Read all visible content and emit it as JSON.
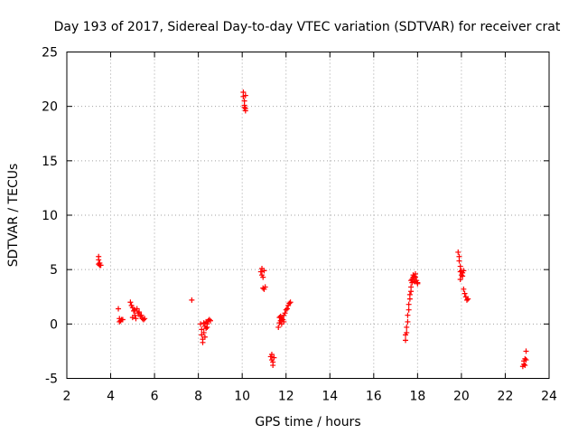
{
  "chart_data": {
    "type": "scatter",
    "title": "Day 193 of 2017, Sidereal Day-to-day VTEC variation (SDTVAR) for receiver crat",
    "xlabel": "GPS time / hours",
    "ylabel": "SDTVAR / TECUs",
    "xlim": [
      2,
      24
    ],
    "ylim": [
      -5,
      25
    ],
    "xticks": [
      "2",
      "4",
      "6",
      "8",
      "10",
      "12",
      "14",
      "16",
      "18",
      "20",
      "22",
      "24"
    ],
    "yticks": [
      "-5",
      "0",
      "5",
      "10",
      "15",
      "20",
      "25"
    ],
    "grid": true,
    "marker": "+",
    "color": "#ff0000",
    "series": [
      {
        "name": "SDTVAR",
        "points": [
          [
            3.45,
            6.2
          ],
          [
            3.45,
            5.9
          ],
          [
            3.45,
            5.5
          ],
          [
            3.5,
            5.4
          ],
          [
            3.55,
            5.4
          ],
          [
            3.5,
            5.6
          ],
          [
            4.35,
            1.4
          ],
          [
            4.4,
            0.5
          ],
          [
            4.45,
            0.3
          ],
          [
            4.5,
            0.4
          ],
          [
            4.55,
            0.4
          ],
          [
            4.4,
            0.2
          ],
          [
            4.9,
            2.0
          ],
          [
            4.95,
            1.7
          ],
          [
            5.0,
            1.5
          ],
          [
            5.05,
            1.2
          ],
          [
            5.1,
            0.8
          ],
          [
            5.15,
            0.5
          ],
          [
            5.0,
            0.6
          ],
          [
            5.2,
            1.4
          ],
          [
            5.25,
            1.0
          ],
          [
            5.3,
            1.1
          ],
          [
            5.35,
            0.7
          ],
          [
            5.4,
            0.8
          ],
          [
            5.45,
            0.5
          ],
          [
            5.5,
            0.4
          ],
          [
            5.55,
            0.5
          ],
          [
            5.1,
            1.3
          ],
          [
            7.7,
            2.2
          ],
          [
            8.1,
            0.0
          ],
          [
            8.15,
            -0.5
          ],
          [
            8.15,
            -1.0
          ],
          [
            8.2,
            -1.4
          ],
          [
            8.2,
            -1.7
          ],
          [
            8.25,
            -0.8
          ],
          [
            8.3,
            -0.2
          ],
          [
            8.3,
            -1.2
          ],
          [
            8.35,
            -0.4
          ],
          [
            8.35,
            0.2
          ],
          [
            8.4,
            0.0
          ],
          [
            8.45,
            0.3
          ],
          [
            8.5,
            0.4
          ],
          [
            8.55,
            0.3
          ],
          [
            8.25,
            0.1
          ],
          [
            8.4,
            -0.3
          ],
          [
            10.05,
            21.3
          ],
          [
            10.05,
            20.9
          ],
          [
            10.1,
            20.5
          ],
          [
            10.1,
            20.1
          ],
          [
            10.15,
            19.8
          ],
          [
            10.15,
            19.6
          ],
          [
            10.1,
            19.9
          ],
          [
            10.15,
            21.0
          ],
          [
            10.85,
            4.8
          ],
          [
            10.9,
            4.5
          ],
          [
            10.9,
            5.1
          ],
          [
            10.95,
            4.3
          ],
          [
            11.0,
            4.9
          ],
          [
            10.95,
            3.3
          ],
          [
            11.0,
            3.2
          ],
          [
            11.05,
            3.4
          ],
          [
            11.3,
            -3.0
          ],
          [
            11.35,
            -3.3
          ],
          [
            11.35,
            -2.8
          ],
          [
            11.4,
            -3.5
          ],
          [
            11.45,
            -3.1
          ],
          [
            11.4,
            -3.8
          ],
          [
            11.65,
            -0.3
          ],
          [
            11.7,
            0.1
          ],
          [
            11.7,
            0.6
          ],
          [
            11.75,
            0.3
          ],
          [
            11.8,
            0.0
          ],
          [
            11.8,
            0.5
          ],
          [
            11.85,
            0.4
          ],
          [
            11.9,
            0.8
          ],
          [
            11.95,
            1.0
          ],
          [
            12.0,
            1.3
          ],
          [
            12.05,
            1.4
          ],
          [
            12.1,
            1.7
          ],
          [
            12.15,
            1.9
          ],
          [
            12.2,
            2.0
          ],
          [
            11.75,
            0.7
          ],
          [
            11.9,
            0.2
          ],
          [
            17.45,
            -1.5
          ],
          [
            17.45,
            -1.0
          ],
          [
            17.5,
            -0.8
          ],
          [
            17.5,
            -0.3
          ],
          [
            17.55,
            0.2
          ],
          [
            17.55,
            0.8
          ],
          [
            17.6,
            1.3
          ],
          [
            17.6,
            1.8
          ],
          [
            17.65,
            2.3
          ],
          [
            17.65,
            2.7
          ],
          [
            17.7,
            3.0
          ],
          [
            17.7,
            3.4
          ],
          [
            17.75,
            3.8
          ],
          [
            17.75,
            4.1
          ],
          [
            17.8,
            4.3
          ],
          [
            17.8,
            4.5
          ],
          [
            17.85,
            4.4
          ],
          [
            17.9,
            4.3
          ],
          [
            17.95,
            4.0
          ],
          [
            18.0,
            3.8
          ],
          [
            18.0,
            3.7
          ],
          [
            17.85,
            3.9
          ],
          [
            17.9,
            4.6
          ],
          [
            17.7,
            4.0
          ],
          [
            19.85,
            6.6
          ],
          [
            19.9,
            6.2
          ],
          [
            19.9,
            5.8
          ],
          [
            19.95,
            5.3
          ],
          [
            19.95,
            4.8
          ],
          [
            20.0,
            4.5
          ],
          [
            20.0,
            4.9
          ],
          [
            20.05,
            4.4
          ],
          [
            20.05,
            4.7
          ],
          [
            20.1,
            3.2
          ],
          [
            20.15,
            2.8
          ],
          [
            20.2,
            2.5
          ],
          [
            20.25,
            2.2
          ],
          [
            20.3,
            2.3
          ],
          [
            19.95,
            4.1
          ],
          [
            20.1,
            4.9
          ],
          [
            22.8,
            -3.9
          ],
          [
            22.85,
            -3.4
          ],
          [
            22.85,
            -3.7
          ],
          [
            22.9,
            -3.2
          ],
          [
            22.9,
            -3.8
          ],
          [
            22.95,
            -2.5
          ],
          [
            22.95,
            -3.3
          ]
        ]
      }
    ]
  }
}
